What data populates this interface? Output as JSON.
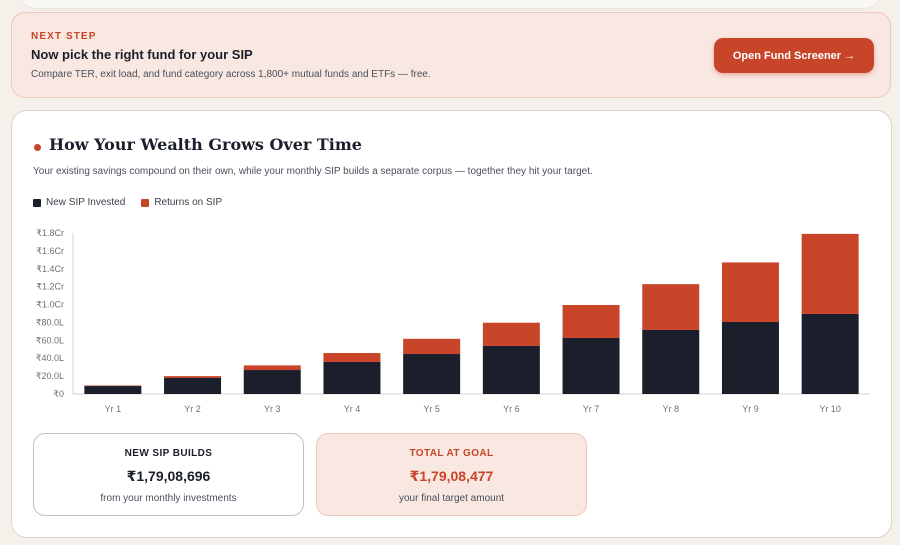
{
  "next_step": {
    "eyebrow": "NEXT STEP",
    "title": "Now pick the right fund for your SIP",
    "subtitle": "Compare TER, exit load, and fund category across 1,800+ mutual funds and ETFs — free.",
    "button_label": "Open Fund Screener →"
  },
  "card": {
    "title": "How Your Wealth Grows Over Time",
    "subtitle": "Your existing savings compound on their own, while your monthly SIP builds a separate corpus — together they hit your target."
  },
  "colors": {
    "invested": "#1b1f2b",
    "returns": "#c8452a",
    "accent": "#c8452a"
  },
  "chart_data": {
    "type": "bar",
    "stacked": true,
    "title": "",
    "xlabel": "",
    "ylabel": "",
    "categories": [
      "Yr 1",
      "Yr 2",
      "Yr 3",
      "Yr 4",
      "Yr 5",
      "Yr 6",
      "Yr 7",
      "Yr 8",
      "Yr 9",
      "Yr 10"
    ],
    "series": [
      {
        "name": "New SIP Invested",
        "values": [
          8.9,
          17.9,
          26.8,
          35.8,
          44.7,
          53.7,
          62.6,
          71.6,
          80.5,
          89.5
        ]
      },
      {
        "name": "Returns on SIP",
        "values": [
          0.6,
          2.1,
          5.2,
          10.0,
          17.0,
          26.0,
          36.9,
          51.2,
          66.6,
          89.5
        ]
      }
    ],
    "ylim": [
      0,
      180
    ],
    "y_ticks": [
      {
        "value": 0,
        "label": "₹0"
      },
      {
        "value": 20,
        "label": "₹20.0L"
      },
      {
        "value": 40,
        "label": "₹40.0L"
      },
      {
        "value": 60,
        "label": "₹60.0L"
      },
      {
        "value": 80,
        "label": "₹80.0L"
      },
      {
        "value": 100,
        "label": "₹1.0Cr"
      },
      {
        "value": 120,
        "label": "₹1.2Cr"
      },
      {
        "value": 140,
        "label": "₹1.4Cr"
      },
      {
        "value": 160,
        "label": "₹1.6Cr"
      },
      {
        "value": 180,
        "label": "₹1.8Cr"
      }
    ],
    "grid": false,
    "legend": "top-left"
  },
  "stats": {
    "sip_label": "NEW SIP BUILDS",
    "sip_value": "₹1,79,08,696",
    "sip_note": "from your monthly investments",
    "goal_label": "TOTAL AT GOAL",
    "goal_value": "₹1,79,08,477",
    "goal_note": "your final target amount"
  }
}
